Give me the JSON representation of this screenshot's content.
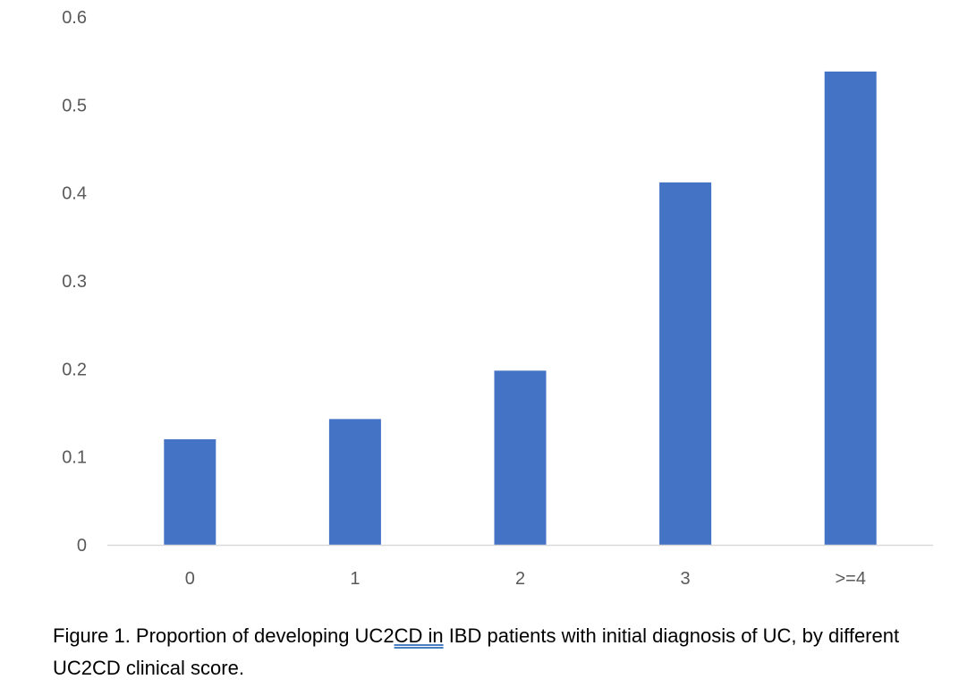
{
  "chart_data": {
    "type": "bar",
    "categories": [
      "0",
      "1",
      "2",
      "3",
      ">=4"
    ],
    "values": [
      0.12,
      0.143,
      0.198,
      0.412,
      0.538
    ],
    "ylim": [
      0,
      0.6
    ],
    "yticks": [
      "0",
      "0.1",
      "0.2",
      "0.3",
      "0.4",
      "0.5",
      "0.6"
    ],
    "grid": false,
    "bar_color": "#4472C4",
    "axis_color": "#D9D9D9",
    "title": "",
    "xlabel": "",
    "ylabel": ""
  },
  "caption": {
    "before": "Figure 1. Proportion of developing UC2",
    "underlined": "CD  in",
    "after": " IBD patients with initial diagnosis of UC, by different UC2CD clinical score."
  }
}
